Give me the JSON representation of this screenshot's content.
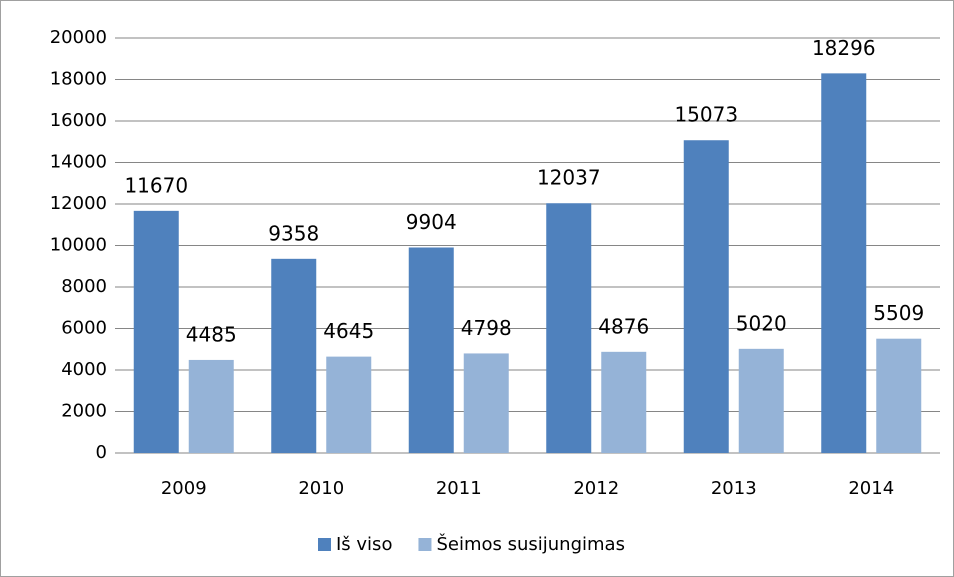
{
  "chart_data": {
    "type": "bar",
    "categories": [
      "2009",
      "2010",
      "2011",
      "2012",
      "2013",
      "2014"
    ],
    "series": [
      {
        "name": "Iš viso",
        "color": "#4f81bd",
        "values": [
          11670,
          9358,
          9904,
          12037,
          15073,
          18296
        ]
      },
      {
        "name": "Šeimos susijungimas",
        "color": "#95b3d7",
        "values": [
          4485,
          4645,
          4798,
          4876,
          5020,
          5509
        ]
      }
    ],
    "ylim": [
      0,
      20000
    ],
    "yticks": [
      0,
      2000,
      4000,
      6000,
      8000,
      10000,
      12000,
      14000,
      16000,
      18000,
      20000
    ],
    "grid": true,
    "legend": "bottom"
  }
}
